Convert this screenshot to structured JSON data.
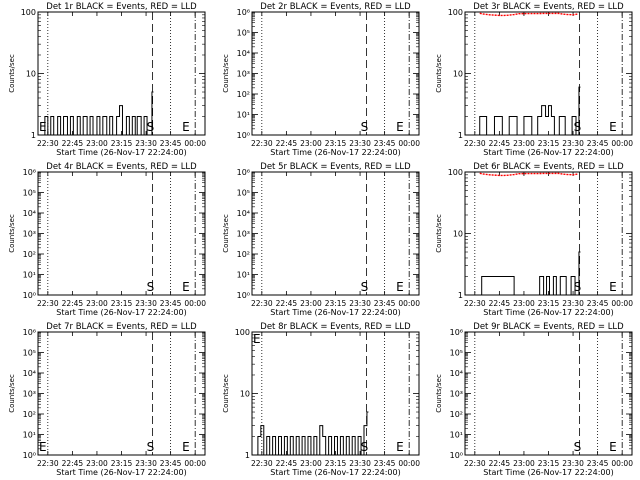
{
  "colors": {
    "background": "#ffffff",
    "axes": "#000000",
    "events": "#000000",
    "lld": "#ff0000"
  },
  "chart_data": [
    {
      "type": "line",
      "title": "Det 1r BLACK = Events, RED = LLD",
      "xlabel": "Start Time (26-Nov-17 22:24:00)",
      "ylabel": "Counts/sec",
      "xticks": [
        "22:30",
        "22:45",
        "23:00",
        "23:15",
        "23:30",
        "23:45",
        "00:00"
      ],
      "yscale": "log",
      "ylim": [
        1,
        100
      ],
      "yticks": [
        "1",
        "10",
        "100"
      ],
      "markers": [
        {
          "label": "S",
          "x": "23:34"
        },
        {
          "label": "E",
          "x": "23:52"
        }
      ],
      "series": [
        {
          "name": "Events",
          "x": [
            22.43,
            22.47,
            22.5,
            22.53,
            22.56,
            22.6,
            22.63,
            22.66,
            22.7,
            22.73,
            22.76,
            22.8,
            22.83,
            22.86,
            22.9,
            22.93,
            22.96,
            23.0,
            23.03,
            23.06,
            23.1,
            23.13,
            23.16,
            23.2,
            23.23,
            23.26,
            23.3,
            23.33,
            23.36,
            23.39,
            23.41,
            23.45,
            23.48,
            23.51,
            23.56
          ],
          "values": [
            1,
            2,
            1,
            2,
            1,
            2,
            1,
            2,
            1,
            2,
            1,
            2,
            1,
            2,
            1,
            2,
            1,
            2,
            1,
            2,
            1,
            2,
            1,
            2,
            3,
            1,
            2,
            1,
            2,
            1,
            2,
            1,
            2,
            1,
            5
          ]
        },
        {
          "name": "LLD",
          "x": [],
          "values": []
        }
      ]
    },
    {
      "type": "line",
      "title": "Det 2r BLACK = Events, RED = LLD",
      "xlabel": "Start Time (26-Nov-17 22:24:00)",
      "ylabel": "Counts/sec",
      "xticks": [
        "22:30",
        "22:45",
        "23:00",
        "23:15",
        "23:30",
        "23:45",
        "00:00"
      ],
      "yscale": "log",
      "ylim": [
        1,
        1000000
      ],
      "yticks": [
        "10⁰",
        "10¹",
        "10²",
        "10³",
        "10⁴",
        "10⁵",
        "10⁶"
      ],
      "markers": [
        {
          "label": "S",
          "x": "23:34"
        },
        {
          "label": "E",
          "x": "23:52"
        }
      ],
      "series": [
        {
          "name": "Events",
          "x": [],
          "values": []
        },
        {
          "name": "LLD",
          "x": [],
          "values": []
        }
      ]
    },
    {
      "type": "line",
      "title": "Det 3r BLACK = Events, RED = LLD",
      "xlabel": "Start Time (26-Nov-17 22:24:00)",
      "ylabel": "Counts/sec",
      "xticks": [
        "22:30",
        "22:45",
        "23:00",
        "23:15",
        "23:30",
        "23:45",
        "00:00"
      ],
      "yscale": "log",
      "ylim": [
        1,
        100
      ],
      "yticks": [
        "1",
        "10",
        "100"
      ],
      "markers": [
        {
          "label": "S",
          "x": "23:34"
        },
        {
          "label": "E",
          "x": "23:52"
        }
      ],
      "series": [
        {
          "name": "Events",
          "x": [
            22.55,
            22.62,
            22.7,
            22.78,
            22.85,
            22.93,
            23.0,
            23.08,
            23.14,
            23.18,
            23.22,
            23.25,
            23.28,
            23.31,
            23.36,
            23.42,
            23.49,
            23.53,
            23.56
          ],
          "values": [
            2,
            1,
            2,
            1,
            2,
            1,
            2,
            1,
            2,
            3,
            2,
            3,
            2,
            1,
            2,
            1,
            2,
            1,
            6
          ]
        },
        {
          "name": "LLD",
          "x": [
            22.55,
            22.6,
            22.65,
            22.7,
            22.75,
            22.8,
            22.85,
            22.9,
            22.95,
            23.35,
            23.4,
            23.45,
            23.5,
            23.55
          ],
          "values": [
            95,
            92,
            90,
            89,
            88,
            88,
            89,
            91,
            94,
            95,
            92,
            91,
            90,
            93
          ]
        }
      ]
    },
    {
      "type": "line",
      "title": "Det 4r BLACK = Events, RED = LLD",
      "xlabel": "Start Time (26-Nov-17 22:24:00)",
      "ylabel": "Counts/sec",
      "xticks": [
        "22:30",
        "22:45",
        "23:00",
        "23:15",
        "23:30",
        "23:45",
        "00:00"
      ],
      "yscale": "log",
      "ylim": [
        1,
        1000000
      ],
      "yticks": [
        "10⁰",
        "10¹",
        "10²",
        "10³",
        "10⁴",
        "10⁵",
        "10⁶"
      ],
      "markers": [
        {
          "label": "S",
          "x": "23:34"
        },
        {
          "label": "E",
          "x": "23:52"
        }
      ],
      "series": [
        {
          "name": "Events",
          "x": [],
          "values": []
        },
        {
          "name": "LLD",
          "x": [],
          "values": []
        }
      ]
    },
    {
      "type": "line",
      "title": "Det 5r BLACK = Events, RED = LLD",
      "xlabel": "Start Time (26-Nov-17 22:24:00)",
      "ylabel": "Counts/sec",
      "xticks": [
        "22:30",
        "22:45",
        "23:00",
        "23:15",
        "23:30",
        "23:45",
        "00:00"
      ],
      "yscale": "log",
      "ylim": [
        1,
        1000000
      ],
      "yticks": [
        "10⁰",
        "10¹",
        "10²",
        "10³",
        "10⁴",
        "10⁵",
        "10⁶"
      ],
      "markers": [
        {
          "label": "S",
          "x": "23:34"
        },
        {
          "label": "E",
          "x": "23:52"
        }
      ],
      "series": [
        {
          "name": "Events",
          "x": [],
          "values": []
        },
        {
          "name": "LLD",
          "x": [],
          "values": []
        }
      ]
    },
    {
      "type": "line",
      "title": "Det 6r BLACK = Events, RED = LLD",
      "xlabel": "Start Time (26-Nov-17 22:24:00)",
      "ylabel": "Counts/sec",
      "xticks": [
        "22:30",
        "22:45",
        "23:00",
        "23:15",
        "23:30",
        "23:45",
        "00:00"
      ],
      "yscale": "log",
      "ylim": [
        1,
        100
      ],
      "yticks": [
        "1",
        "10",
        "100"
      ],
      "markers": [
        {
          "label": "S",
          "x": "23:34"
        },
        {
          "label": "E",
          "x": "23:52"
        }
      ],
      "series": [
        {
          "name": "Events",
          "x": [
            22.53,
            22.57,
            22.9,
            23.13,
            23.16,
            23.2,
            23.23,
            23.26,
            23.3,
            23.33,
            23.37,
            23.43,
            23.48,
            23.52,
            23.56
          ],
          "values": [
            1,
            2,
            1,
            1,
            2,
            1,
            2,
            1,
            2,
            1,
            2,
            1,
            2,
            1,
            5
          ]
        },
        {
          "name": "LLD",
          "x": [
            22.55,
            22.6,
            22.65,
            22.7,
            22.75,
            22.8,
            22.85,
            22.9,
            22.95,
            23.35,
            23.4,
            23.45,
            23.5,
            23.55
          ],
          "values": [
            95,
            92,
            90,
            89,
            88,
            88,
            89,
            91,
            94,
            95,
            92,
            91,
            90,
            93
          ]
        }
      ]
    },
    {
      "type": "line",
      "title": "Det 7r BLACK = Events, RED = LLD",
      "xlabel": "Start Time (26-Nov-17 22:24:00)",
      "ylabel": "Counts/sec",
      "xticks": [
        "22:30",
        "22:45",
        "23:00",
        "23:15",
        "23:30",
        "23:45",
        "00:00"
      ],
      "yscale": "log",
      "ylim": [
        1,
        1000000
      ],
      "yticks": [
        "10⁰",
        "10¹",
        "10²",
        "10³",
        "10⁴",
        "10⁵",
        "10⁶"
      ],
      "markers": [
        {
          "label": "S",
          "x": "23:34"
        },
        {
          "label": "E",
          "x": "23:52"
        }
      ],
      "series": [
        {
          "name": "Events",
          "x": [],
          "values": []
        },
        {
          "name": "LLD",
          "x": [],
          "values": []
        }
      ]
    },
    {
      "type": "line",
      "title": "Det 8r BLACK = Events, RED = LLD",
      "xlabel": "Start Time (26-Nov-17 22:24:00)",
      "ylabel": "Counts/sec",
      "xticks": [
        "22:30",
        "22:45",
        "23:00",
        "23:15",
        "23:30",
        "23:45",
        "00:00"
      ],
      "yscale": "log",
      "ylim": [
        1,
        100
      ],
      "yticks": [
        "1",
        "10",
        "100"
      ],
      "markers": [
        {
          "label": "S",
          "x": "23:34"
        },
        {
          "label": "E",
          "x": "23:52"
        }
      ],
      "series": [
        {
          "name": "Events",
          "x": [
            22.43,
            22.46,
            22.49,
            22.52,
            22.55,
            22.58,
            22.61,
            22.64,
            22.67,
            22.7,
            22.73,
            22.76,
            22.79,
            22.82,
            22.85,
            22.88,
            22.91,
            22.94,
            22.97,
            23.0,
            23.03,
            23.06,
            23.09,
            23.12,
            23.15,
            23.18,
            23.21,
            23.24,
            23.27,
            23.3,
            23.33,
            23.36,
            23.39,
            23.42,
            23.45,
            23.48,
            23.51,
            23.54,
            23.57
          ],
          "values": [
            1,
            2,
            3,
            1,
            2,
            1,
            2,
            1,
            2,
            1,
            2,
            1,
            2,
            1,
            2,
            1,
            2,
            1,
            2,
            1,
            2,
            1,
            3,
            2,
            1,
            2,
            1,
            2,
            1,
            2,
            1,
            2,
            1,
            2,
            1,
            2,
            1,
            3,
            5
          ]
        },
        {
          "name": "LLD",
          "x": [],
          "values": []
        }
      ]
    },
    {
      "type": "line",
      "title": "Det 9r BLACK = Events, RED = LLD",
      "xlabel": "Start Time (26-Nov-17 22:24:00)",
      "ylabel": "Counts/sec",
      "xticks": [
        "22:30",
        "22:45",
        "23:00",
        "23:15",
        "23:30",
        "23:45",
        "00:00"
      ],
      "yscale": "log",
      "ylim": [
        1,
        1000000
      ],
      "yticks": [
        "10⁰",
        "10¹",
        "10²",
        "10³",
        "10⁴",
        "10⁵",
        "10⁶"
      ],
      "markers": [
        {
          "label": "S",
          "x": "23:34"
        },
        {
          "label": "E",
          "x": "23:52"
        }
      ],
      "series": [
        {
          "name": "Events",
          "x": [],
          "values": []
        },
        {
          "name": "LLD",
          "x": [],
          "values": []
        }
      ]
    }
  ]
}
